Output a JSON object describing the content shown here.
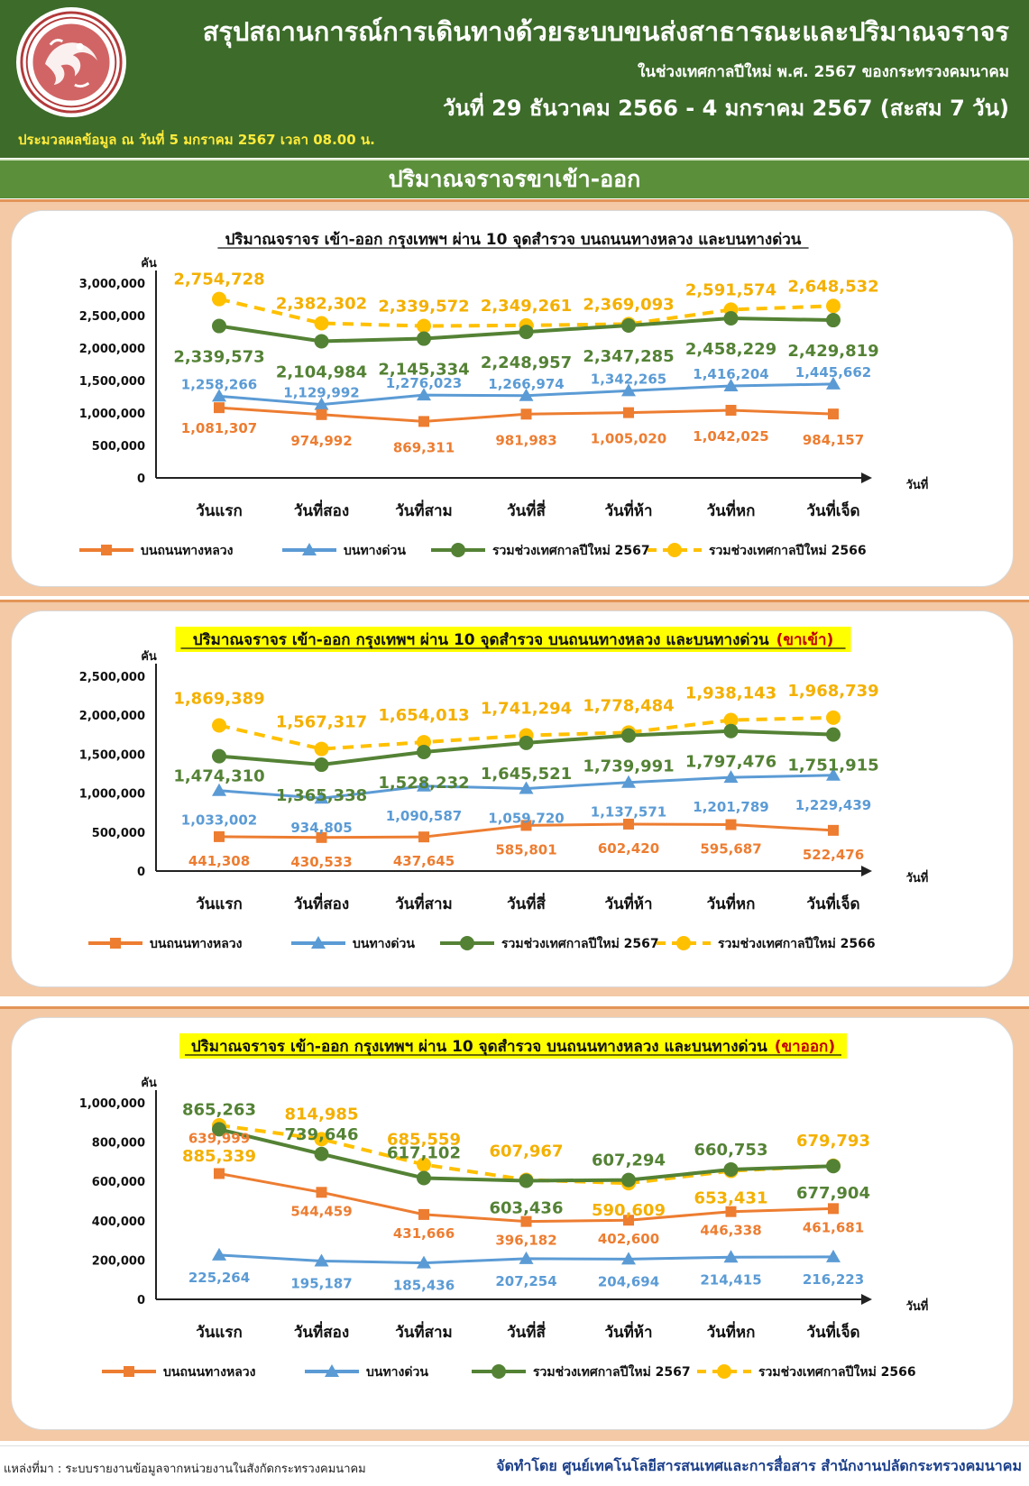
{
  "header": {
    "title": "สรุปสถานการณ์การเดินทางด้วยระบบขนส่งสาธารณะและปริมาณจราจร",
    "subtitle": "ในช่วงเทศกาลปีใหม่ พ.ศ. 2567 ของกระทรวงคมนาคม",
    "date_range": "วันที่ 29 ธันวาคม 2566 - 4 มกราคม 2567 (สะสม 7 วัน)",
    "processed": "ประมวลผลข้อมูล ณ วันที่ 5 มกราคม 2567 เวลา 08.00 น."
  },
  "section_title": "ปริมาณจราจรขาเข้า-ออก",
  "colors": {
    "highway": "#ed7d31",
    "expressway": "#5b9bd5",
    "total_2567": "#548235",
    "total_2566": "#ffc000",
    "header_bg": "#3d6b2a",
    "section_bg": "#5b8f3a"
  },
  "chart_data": [
    {
      "type": "line",
      "title": "ปริมาณจราจร เข้า-ออก กรุงเทพฯ ผ่าน 10 จุดสำรวจ บนถนนทางหลวง และบนทางด่วน",
      "title_suffix": "",
      "highlight": false,
      "ylabel": "คัน",
      "xlabel": "วันที่",
      "ylim": [
        0,
        3000000
      ],
      "yticks": [
        "0",
        "500,000",
        "1,000,000",
        "1,500,000",
        "2,000,000",
        "2,500,000",
        "3,000,000"
      ],
      "categories": [
        "วันแรก",
        "วันที่สอง",
        "วันที่สาม",
        "วันที่สี่",
        "วันที่ห้า",
        "วันที่หก",
        "วันที่เจ็ด"
      ],
      "series": [
        {
          "name": "บนถนนทางหลวง",
          "key": "highway",
          "marker": "square",
          "dashed": false,
          "values": [
            1081307,
            974992,
            869311,
            981983,
            1005020,
            1042025,
            984157
          ],
          "labels": [
            "1,081,307",
            "974,992",
            "869,311",
            "981,983",
            "1,005,020",
            "1,042,025",
            "984,157"
          ]
        },
        {
          "name": "บนทางด่วน",
          "key": "expressway",
          "marker": "triangle",
          "dashed": false,
          "values": [
            1258266,
            1129992,
            1276023,
            1266974,
            1342265,
            1416204,
            1445662
          ],
          "labels": [
            "1,258,266",
            "1,129,992",
            "1,276,023",
            "1,266,974",
            "1,342,265",
            "1,416,204",
            "1,445,662"
          ]
        },
        {
          "name": "รวมช่วงเทศกาลปีใหม่ 2567",
          "key": "total_2567",
          "marker": "circle",
          "dashed": false,
          "values": [
            2339573,
            2104984,
            2145334,
            2248957,
            2347285,
            2458229,
            2429819
          ],
          "labels": [
            "2,339,573",
            "2,104,984",
            "2,145,334",
            "2,248,957",
            "2,347,285",
            "2,458,229",
            "2,429,819"
          ]
        },
        {
          "name": "รวมช่วงเทศกาลปีใหม่ 2566",
          "key": "total_2566",
          "marker": "circle",
          "dashed": true,
          "values": [
            2754728,
            2382302,
            2339572,
            2349261,
            2369093,
            2591574,
            2648532
          ],
          "labels": [
            "2,754,728",
            "2,382,302",
            "2,339,572",
            "2,349,261",
            "2,369,093",
            "2,591,574",
            "2,648,532"
          ]
        }
      ]
    },
    {
      "type": "line",
      "title": "ปริมาณจราจร เข้า-ออก กรุงเทพฯ ผ่าน 10 จุดสำรวจ บนถนนทางหลวง และบนทางด่วน",
      "title_suffix": "(ขาเข้า)",
      "highlight": true,
      "ylabel": "คัน",
      "xlabel": "วันที่",
      "ylim": [
        0,
        2500000
      ],
      "yticks": [
        "0",
        "500,000",
        "1,000,000",
        "1,500,000",
        "2,000,000",
        "2,500,000"
      ],
      "categories": [
        "วันแรก",
        "วันที่สอง",
        "วันที่สาม",
        "วันที่สี่",
        "วันที่ห้า",
        "วันที่หก",
        "วันที่เจ็ด"
      ],
      "series": [
        {
          "name": "บนถนนทางหลวง",
          "key": "highway",
          "marker": "square",
          "dashed": false,
          "values": [
            441308,
            430533,
            437645,
            585801,
            602420,
            595687,
            522476
          ],
          "labels": [
            "441,308",
            "430,533",
            "437,645",
            "585,801",
            "602,420",
            "595,687",
            "522,476"
          ]
        },
        {
          "name": "บนทางด่วน",
          "key": "expressway",
          "marker": "triangle",
          "dashed": false,
          "values": [
            1033002,
            934805,
            1090587,
            1059720,
            1137571,
            1201789,
            1229439
          ],
          "labels": [
            "1,033,002",
            "934,805",
            "1,090,587",
            "1,059,720",
            "1,137,571",
            "1,201,789",
            "1,229,439"
          ]
        },
        {
          "name": "รวมช่วงเทศกาลปีใหม่ 2567",
          "key": "total_2567",
          "marker": "circle",
          "dashed": false,
          "values": [
            1474310,
            1365338,
            1528232,
            1645521,
            1739991,
            1797476,
            1751915
          ],
          "labels": [
            "1,474,310",
            "1,365,338",
            "1,528,232",
            "1,645,521",
            "1,739,991",
            "1,797,476",
            "1,751,915"
          ]
        },
        {
          "name": "รวมช่วงเทศกาลปีใหม่ 2566",
          "key": "total_2566",
          "marker": "circle",
          "dashed": true,
          "values": [
            1869389,
            1567317,
            1654013,
            1741294,
            1778484,
            1938143,
            1968739
          ],
          "labels": [
            "1,869,389",
            "1,567,317",
            "1,654,013",
            "1,741,294",
            "1,778,484",
            "1,938,143",
            "1,968,739"
          ]
        }
      ]
    },
    {
      "type": "line",
      "title": "ปริมาณจราจร เข้า-ออก กรุงเทพฯ ผ่าน 10 จุดสำรวจ บนถนนทางหลวง และบนทางด่วน",
      "title_suffix": "(ขาออก)",
      "highlight": true,
      "ylabel": "คัน",
      "xlabel": "วันที่",
      "ylim": [
        0,
        1000000
      ],
      "yticks": [
        "0",
        "200,000",
        "400,000",
        "600,000",
        "800,000",
        "1,000,000"
      ],
      "categories": [
        "วันแรก",
        "วันที่สอง",
        "วันที่สาม",
        "วันที่สี่",
        "วันที่ห้า",
        "วันที่หก",
        "วันที่เจ็ด"
      ],
      "series": [
        {
          "name": "บนถนนทางหลวง",
          "key": "highway",
          "marker": "square",
          "dashed": false,
          "values": [
            639999,
            544459,
            431666,
            396182,
            402600,
            446338,
            461681
          ],
          "labels": [
            "639,999",
            "544,459",
            "431,666",
            "396,182",
            "402,600",
            "446,338",
            "461,681"
          ]
        },
        {
          "name": "บนทางด่วน",
          "key": "expressway",
          "marker": "triangle",
          "dashed": false,
          "values": [
            225264,
            195187,
            185436,
            207254,
            204694,
            214415,
            216223
          ],
          "labels": [
            "225,264",
            "195,187",
            "185,436",
            "207,254",
            "204,694",
            "214,415",
            "216,223"
          ]
        },
        {
          "name": "รวมช่วงเทศกาลปีใหม่ 2567",
          "key": "total_2567",
          "marker": "circle",
          "dashed": false,
          "values": [
            865263,
            739646,
            617102,
            603436,
            607294,
            660753,
            677904
          ],
          "labels": [
            "865,263",
            "739,646",
            "617,102",
            "603,436",
            "607,294",
            "660,753",
            "677,904"
          ]
        },
        {
          "name": "รวมช่วงเทศกาลปีใหม่ 2566",
          "key": "total_2566",
          "marker": "circle",
          "dashed": true,
          "values": [
            885339,
            814985,
            685559,
            607967,
            590609,
            653431,
            679793
          ],
          "labels": [
            "885,339",
            "814,985",
            "685,559",
            "607,967",
            "590,609",
            "653,431",
            "679,793"
          ]
        }
      ]
    }
  ],
  "footer": {
    "source": "แหล่งที่มา : ระบบรายงานข้อมูลจากหน่วยงานในสังกัดกระทรวงคมนาคม",
    "made_by": "จัดทำโดย ศูนย์เทคโนโลยีสารสนเทศและการสื่อสาร สำนักงานปลัดกระทรวงคมนาคม"
  }
}
